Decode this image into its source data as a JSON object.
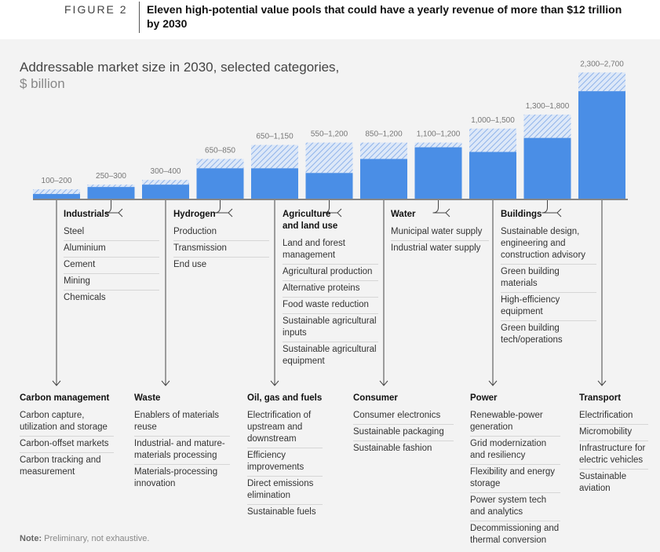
{
  "figure": {
    "label": "FIGURE 2",
    "title": "Eleven high-potential value pools that could have a yearly revenue of more than $12 trillion by 2030"
  },
  "chart_title": "Addressable market size in 2030, selected categories,",
  "chart_unit": "$ billion",
  "colors": {
    "bar": "#4a8ee6",
    "hatch": "#b7cff2",
    "background": "#f3f3f3",
    "line": "#444444"
  },
  "chart_data": {
    "type": "bar",
    "stacked_range": true,
    "categories": [
      "Carbon management",
      "Industrials",
      "Waste",
      "Hydrogen",
      "Oil, gas and fuels",
      "Agriculture and land use",
      "Consumer",
      "Water",
      "Power",
      "Buildings",
      "Transport"
    ],
    "range_labels": [
      "100–200",
      "250–300",
      "300–400",
      "650–850",
      "650–1,150",
      "550–1,200",
      "850–1,200",
      "1,100–1,200",
      "1,000–1,500",
      "1,300–1,800",
      "2,300–2,700"
    ],
    "low": [
      100,
      250,
      300,
      650,
      650,
      550,
      850,
      1100,
      1000,
      1300,
      2300
    ],
    "high": [
      200,
      300,
      400,
      850,
      1150,
      1200,
      1200,
      1200,
      1500,
      1800,
      2700
    ],
    "ylim": [
      0,
      2700
    ]
  },
  "top_columns": [
    {
      "title": "Industrials",
      "items": [
        "Steel",
        "Aluminium",
        "Cement",
        "Mining",
        "Chemicals"
      ]
    },
    {
      "title": "Hydrogen",
      "items": [
        "Production",
        "Transmission",
        "End use"
      ]
    },
    {
      "title": "Agriculture and land use",
      "items": [
        "Land and forest management",
        "Agricultural production",
        "Alternative proteins",
        "Food waste reduction",
        "Sustainable agricultural inputs",
        "Sustainable agricultural equipment"
      ]
    },
    {
      "title": "Water",
      "items": [
        "Municipal water supply",
        "Industrial water supply"
      ]
    },
    {
      "title": "Buildings",
      "items": [
        "Sustainable design, engineering and construction advisory",
        "Green building materials",
        "High-efficiency equipment",
        "Green building tech/operations"
      ]
    }
  ],
  "bottom_columns": [
    {
      "title": "Carbon management",
      "items": [
        "Carbon capture, utilization and storage",
        "Carbon-offset markets",
        "Carbon tracking and measurement"
      ]
    },
    {
      "title": "Waste",
      "items": [
        "Enablers of materials reuse",
        "Industrial- and mature-materials processing",
        "Materials-processing innovation"
      ]
    },
    {
      "title": "Oil, gas and fuels",
      "items": [
        "Electrification of upstream and downstream",
        "Efficiency improvements",
        "Direct emissions elimination",
        "Sustainable fuels"
      ]
    },
    {
      "title": "Consumer",
      "items": [
        "Consumer electronics",
        "Sustainable packaging",
        "Sustainable fashion"
      ]
    },
    {
      "title": "Power",
      "items": [
        "Renewable-power generation",
        "Grid modernization and resiliency",
        "Flexibility and energy storage",
        "Power system tech and analytics",
        "Decommissioning and thermal conversion"
      ]
    },
    {
      "title": "Transport",
      "items": [
        "Electrification",
        "Micromobility",
        "Infrastructure for electric vehicles",
        "Sustainable aviation"
      ]
    }
  ],
  "note": {
    "label": "Note:",
    "text": "Preliminary, not exhaustive."
  }
}
